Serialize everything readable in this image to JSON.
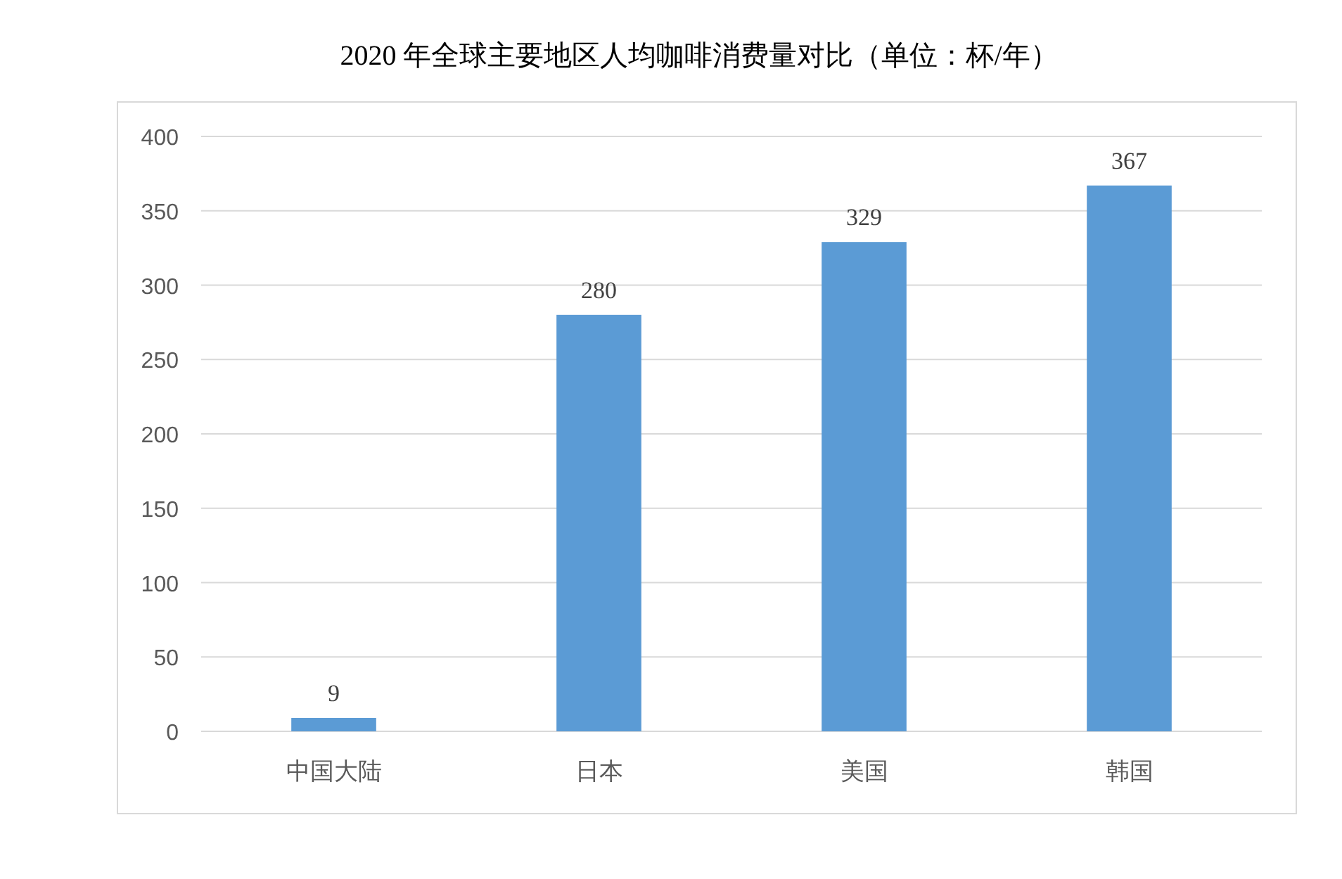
{
  "chart_data": {
    "type": "bar",
    "title": "2020 年全球主要地区人均咖啡消费量对比（单位：杯/年）",
    "categories": [
      "中国大陆",
      "日本",
      "美国",
      "韩国"
    ],
    "values": [
      9,
      280,
      329,
      367
    ],
    "color": "#5b9bd5",
    "ylim": [
      0,
      400
    ],
    "yticks": [
      0,
      50,
      100,
      150,
      200,
      250,
      300,
      350,
      400
    ],
    "grid": "y",
    "data_labels": true
  }
}
